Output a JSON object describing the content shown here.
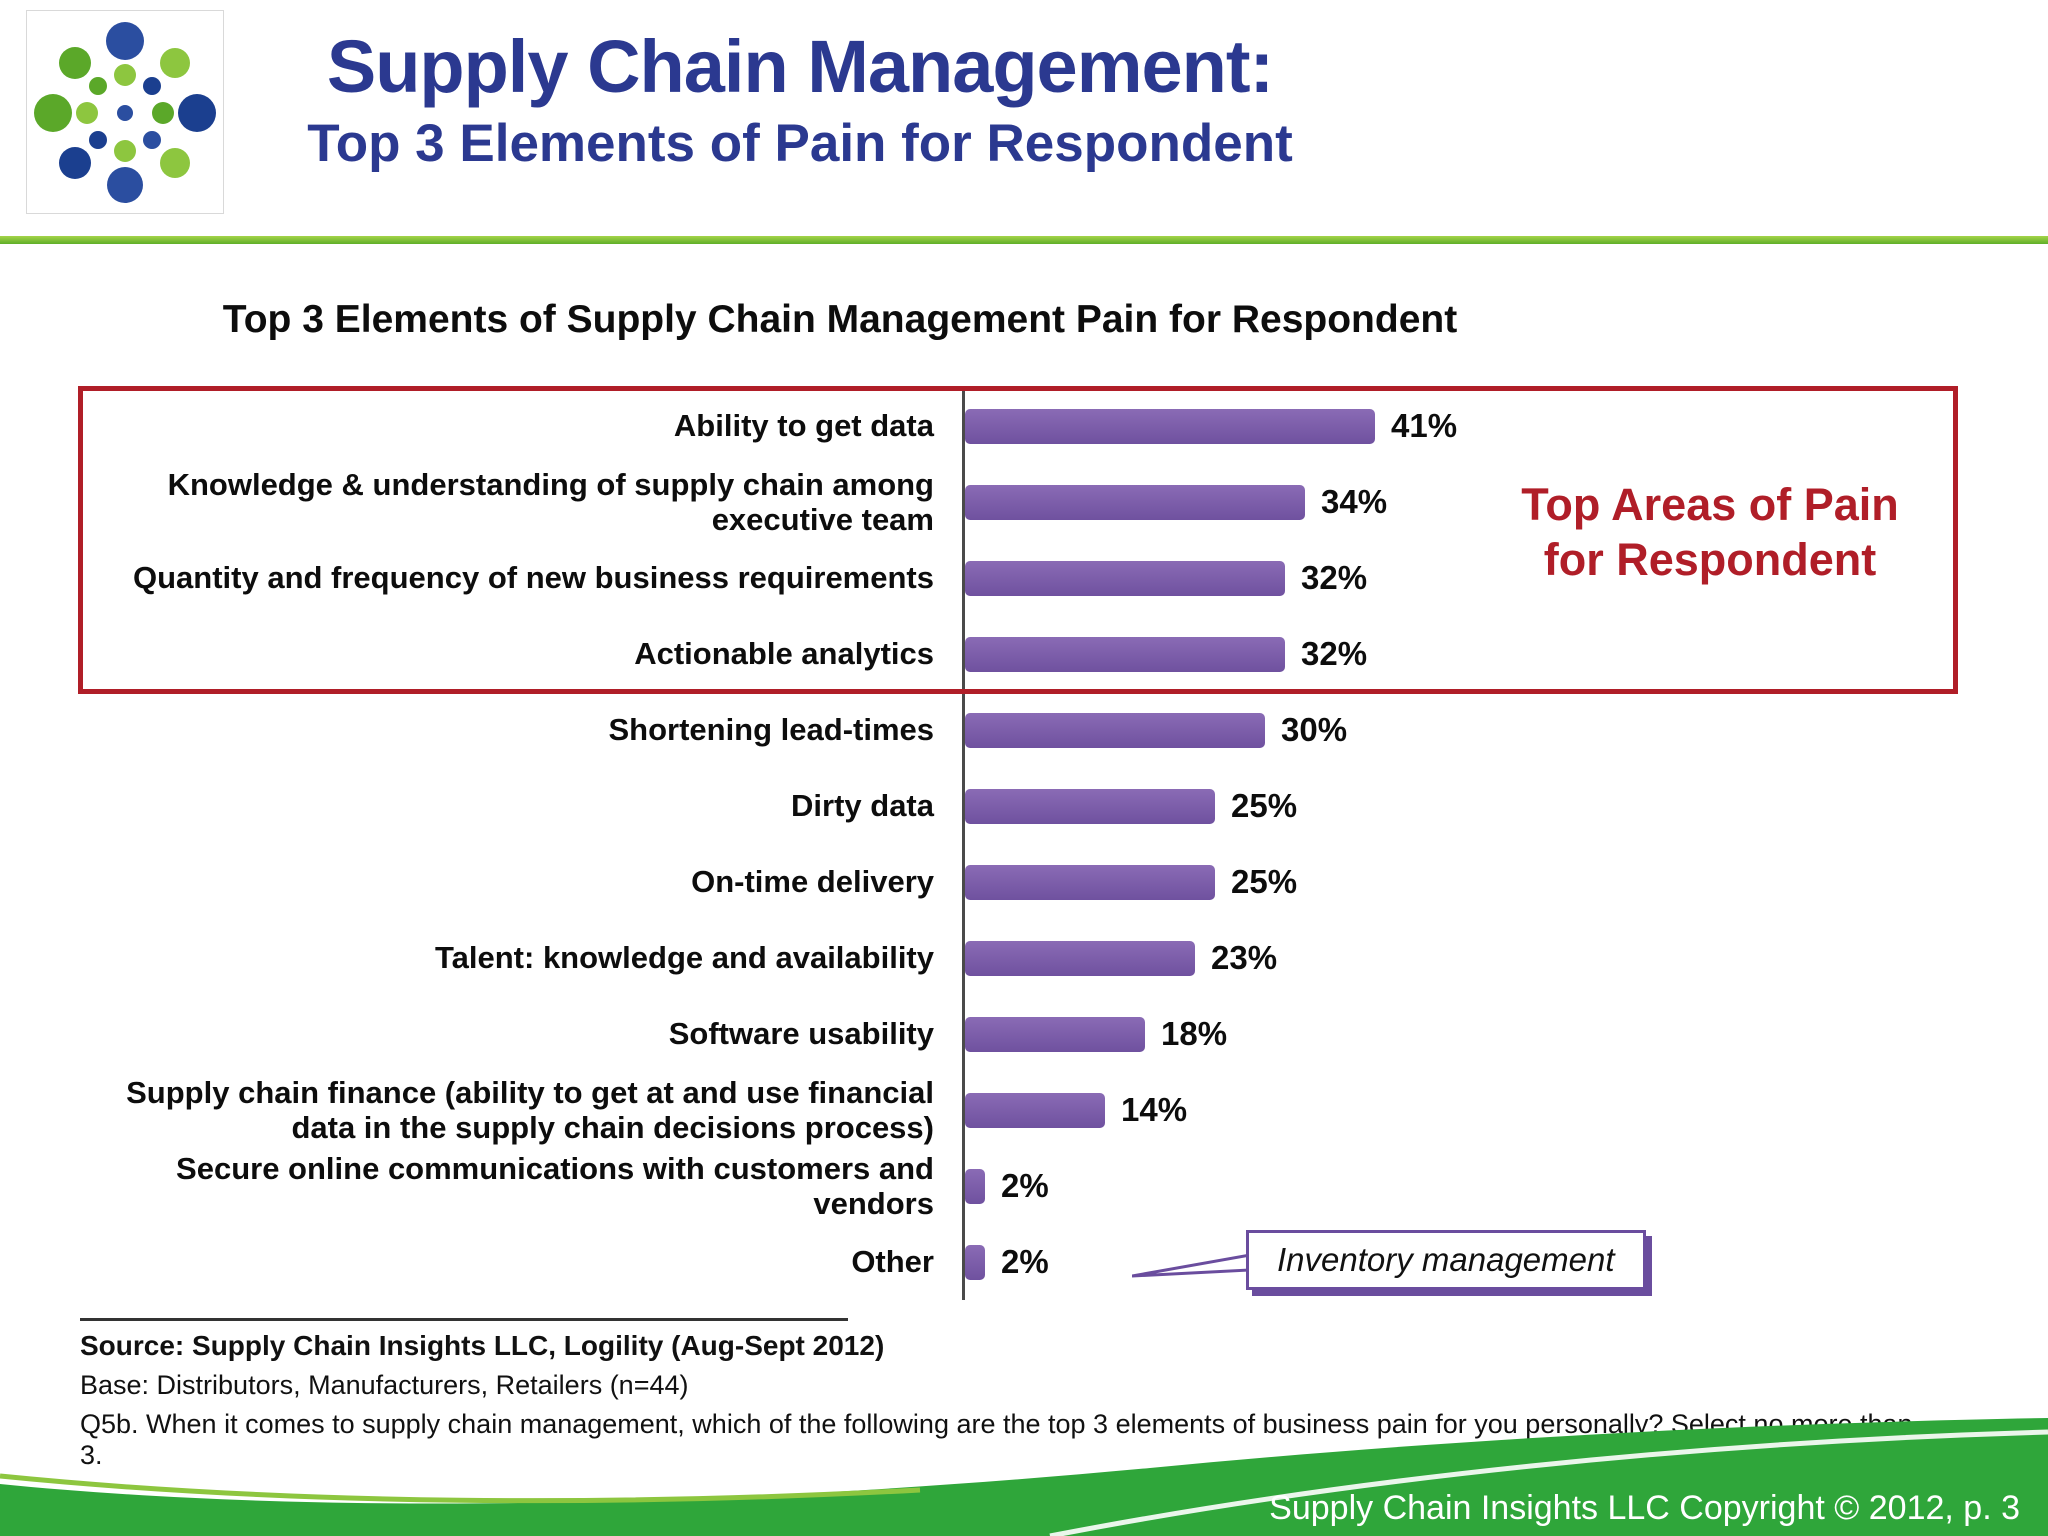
{
  "header": {
    "title_line1": "Supply Chain Management:",
    "title_line2": "Top 3 Elements of Pain for Respondent"
  },
  "chart_data": {
    "type": "bar",
    "orientation": "horizontal",
    "title": "Top 3 Elements of Supply Chain Management Pain for Respondent",
    "categories": [
      "Ability to get data",
      "Knowledge & understanding of supply chain among executive team",
      "Quantity and frequency of new business requirements",
      "Actionable analytics",
      "Shortening lead-times",
      "Dirty data",
      "On-time delivery",
      "Talent: knowledge and availability",
      "Software usability",
      "Supply chain finance (ability to get at and use financial data in the supply chain decisions process)",
      "Secure online communications with customers and vendors",
      "Other"
    ],
    "values": [
      41,
      34,
      32,
      32,
      30,
      25,
      25,
      23,
      18,
      14,
      2,
      2
    ],
    "value_labels": [
      "41%",
      "34%",
      "32%",
      "32%",
      "30%",
      "25%",
      "25%",
      "23%",
      "18%",
      "14%",
      "2%",
      "2%"
    ],
    "unit": "%",
    "xlim": [
      0,
      45
    ],
    "bar_color": "#7B5EA7",
    "legend": "none",
    "grid": false,
    "highlight": {
      "rows": [
        0,
        1,
        2,
        3
      ],
      "label": "Top Areas of Pain for Respondent",
      "color": "#B01E28"
    },
    "callout": {
      "text": "Inventory management",
      "target_category": "Other"
    }
  },
  "footnotes": {
    "source": "Source:  Supply Chain Insights LLC, Logility (Aug-Sept 2012)",
    "base": "Base:  Distributors, Manufacturers, Retailers (n=44)",
    "question": "Q5b. When it comes to supply chain management, which of the following are the top 3 elements of business pain for you personally? Select no more than 3."
  },
  "footer": {
    "copyright": "Supply Chain Insights LLC Copyright © 2012, p. 3"
  },
  "colors": {
    "title_blue": "#2B3990",
    "bar_purple": "#7B5EA7",
    "highlight_red": "#B01E28",
    "footer_green": "#2FA63A",
    "accent_green": "#8DC63F"
  }
}
